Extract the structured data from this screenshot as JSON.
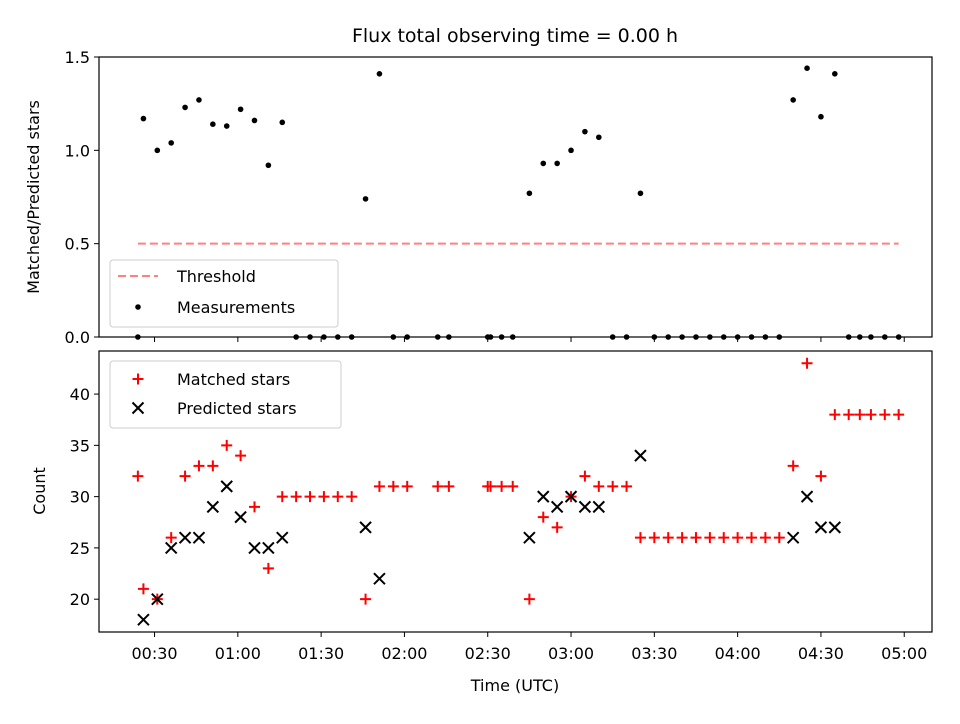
{
  "chart_data": [
    {
      "type": "scatter",
      "title": "Flux total observing time = 0.00 h",
      "xlabel": "",
      "ylabel": "Matched/Predicted stars",
      "xlim": [
        "00:10",
        "05:10"
      ],
      "ylim": [
        0,
        1.5
      ],
      "yticks": [
        "0.0",
        "0.5",
        "1.0",
        "1.5"
      ],
      "threshold": {
        "name": "Threshold",
        "value": 0.5,
        "x_range": [
          "00:24",
          "04:58"
        ],
        "color": "#ff8080",
        "style": "dashed"
      },
      "series": [
        {
          "name": "Measurements",
          "color": "#000000",
          "marker": "dot",
          "points": [
            [
              "00:24",
              0.0
            ],
            [
              "00:26",
              1.17
            ],
            [
              "00:31",
              1.0
            ],
            [
              "00:36",
              1.04
            ],
            [
              "00:41",
              1.23
            ],
            [
              "00:46",
              1.27
            ],
            [
              "00:51",
              1.14
            ],
            [
              "00:56",
              1.13
            ],
            [
              "01:01",
              1.22
            ],
            [
              "01:06",
              1.16
            ],
            [
              "01:11",
              0.92
            ],
            [
              "01:16",
              1.15
            ],
            [
              "01:21",
              0.0
            ],
            [
              "01:26",
              0.0
            ],
            [
              "01:31",
              0.0
            ],
            [
              "01:36",
              0.0
            ],
            [
              "01:41",
              0.0
            ],
            [
              "01:46",
              0.74
            ],
            [
              "01:51",
              1.41
            ],
            [
              "01:56",
              0.0
            ],
            [
              "02:01",
              0.0
            ],
            [
              "02:12",
              0.0
            ],
            [
              "02:16",
              0.0
            ],
            [
              "02:30",
              0.0
            ],
            [
              "02:31",
              0.0
            ],
            [
              "02:35",
              0.0
            ],
            [
              "02:39",
              0.0
            ],
            [
              "02:45",
              0.77
            ],
            [
              "02:50",
              0.93
            ],
            [
              "02:55",
              0.93
            ],
            [
              "03:00",
              1.0
            ],
            [
              "03:05",
              1.1
            ],
            [
              "03:10",
              1.07
            ],
            [
              "03:15",
              0.0
            ],
            [
              "03:20",
              0.0
            ],
            [
              "03:25",
              0.77
            ],
            [
              "03:30",
              0.0
            ],
            [
              "03:35",
              0.0
            ],
            [
              "03:40",
              0.0
            ],
            [
              "03:45",
              0.0
            ],
            [
              "03:50",
              0.0
            ],
            [
              "03:55",
              0.0
            ],
            [
              "04:00",
              0.0
            ],
            [
              "04:05",
              0.0
            ],
            [
              "04:10",
              0.0
            ],
            [
              "04:15",
              0.0
            ],
            [
              "04:20",
              1.27
            ],
            [
              "04:25",
              1.44
            ],
            [
              "04:30",
              1.18
            ],
            [
              "04:35",
              1.41
            ],
            [
              "04:40",
              0.0
            ],
            [
              "04:44",
              0.0
            ],
            [
              "04:48",
              0.0
            ],
            [
              "04:53",
              0.0
            ],
            [
              "04:58",
              0.0
            ]
          ]
        }
      ],
      "legend": {
        "position": "lower-left",
        "entries": [
          "Threshold",
          "Measurements"
        ]
      },
      "grid": false
    },
    {
      "type": "scatter",
      "title": "",
      "xlabel": "Time (UTC)",
      "ylabel": "Count",
      "xlim": [
        "00:10",
        "05:10"
      ],
      "ylim": [
        16.8,
        44.2
      ],
      "yticks": [
        "20",
        "25",
        "30",
        "35",
        "40"
      ],
      "xticks": [
        "00:30",
        "01:00",
        "01:30",
        "02:00",
        "02:30",
        "03:00",
        "03:30",
        "04:00",
        "04:30",
        "05:00"
      ],
      "series": [
        {
          "name": "Matched stars",
          "color": "#ff0000",
          "marker": "plus",
          "points": [
            [
              "00:24",
              32
            ],
            [
              "00:26",
              21
            ],
            [
              "00:31",
              20
            ],
            [
              "00:36",
              26
            ],
            [
              "00:41",
              32
            ],
            [
              "00:46",
              33
            ],
            [
              "00:51",
              33
            ],
            [
              "00:56",
              35
            ],
            [
              "01:01",
              34
            ],
            [
              "01:06",
              29
            ],
            [
              "01:11",
              23
            ],
            [
              "01:16",
              30
            ],
            [
              "01:21",
              30
            ],
            [
              "01:26",
              30
            ],
            [
              "01:31",
              30
            ],
            [
              "01:36",
              30
            ],
            [
              "01:41",
              30
            ],
            [
              "01:46",
              20
            ],
            [
              "01:51",
              31
            ],
            [
              "01:56",
              31
            ],
            [
              "02:01",
              31
            ],
            [
              "02:12",
              31
            ],
            [
              "02:16",
              31
            ],
            [
              "02:30",
              31
            ],
            [
              "02:31",
              31
            ],
            [
              "02:35",
              31
            ],
            [
              "02:39",
              31
            ],
            [
              "02:45",
              20
            ],
            [
              "02:50",
              28
            ],
            [
              "02:55",
              27
            ],
            [
              "03:00",
              30
            ],
            [
              "03:05",
              32
            ],
            [
              "03:10",
              31
            ],
            [
              "03:15",
              31
            ],
            [
              "03:20",
              31
            ],
            [
              "03:25",
              26
            ],
            [
              "03:30",
              26
            ],
            [
              "03:35",
              26
            ],
            [
              "03:40",
              26
            ],
            [
              "03:45",
              26
            ],
            [
              "03:50",
              26
            ],
            [
              "03:55",
              26
            ],
            [
              "04:00",
              26
            ],
            [
              "04:05",
              26
            ],
            [
              "04:10",
              26
            ],
            [
              "04:15",
              26
            ],
            [
              "04:20",
              33
            ],
            [
              "04:25",
              43
            ],
            [
              "04:30",
              32
            ],
            [
              "04:35",
              38
            ],
            [
              "04:40",
              38
            ],
            [
              "04:44",
              38
            ],
            [
              "04:48",
              38
            ],
            [
              "04:53",
              38
            ],
            [
              "04:58",
              38
            ]
          ]
        },
        {
          "name": "Predicted stars",
          "color": "#000000",
          "marker": "x",
          "points": [
            [
              "00:26",
              18
            ],
            [
              "00:31",
              20
            ],
            [
              "00:36",
              25
            ],
            [
              "00:41",
              26
            ],
            [
              "00:46",
              26
            ],
            [
              "00:51",
              29
            ],
            [
              "00:56",
              31
            ],
            [
              "01:01",
              28
            ],
            [
              "01:06",
              25
            ],
            [
              "01:11",
              25
            ],
            [
              "01:16",
              26
            ],
            [
              "01:46",
              27
            ],
            [
              "01:51",
              22
            ],
            [
              "02:45",
              26
            ],
            [
              "02:50",
              30
            ],
            [
              "02:55",
              29
            ],
            [
              "03:00",
              30
            ],
            [
              "03:05",
              29
            ],
            [
              "03:10",
              29
            ],
            [
              "03:25",
              34
            ],
            [
              "04:20",
              26
            ],
            [
              "04:25",
              30
            ],
            [
              "04:30",
              27
            ],
            [
              "04:35",
              27
            ]
          ]
        }
      ],
      "legend": {
        "position": "upper-left",
        "entries": [
          "Matched stars",
          "Predicted stars"
        ]
      },
      "grid": false
    }
  ]
}
